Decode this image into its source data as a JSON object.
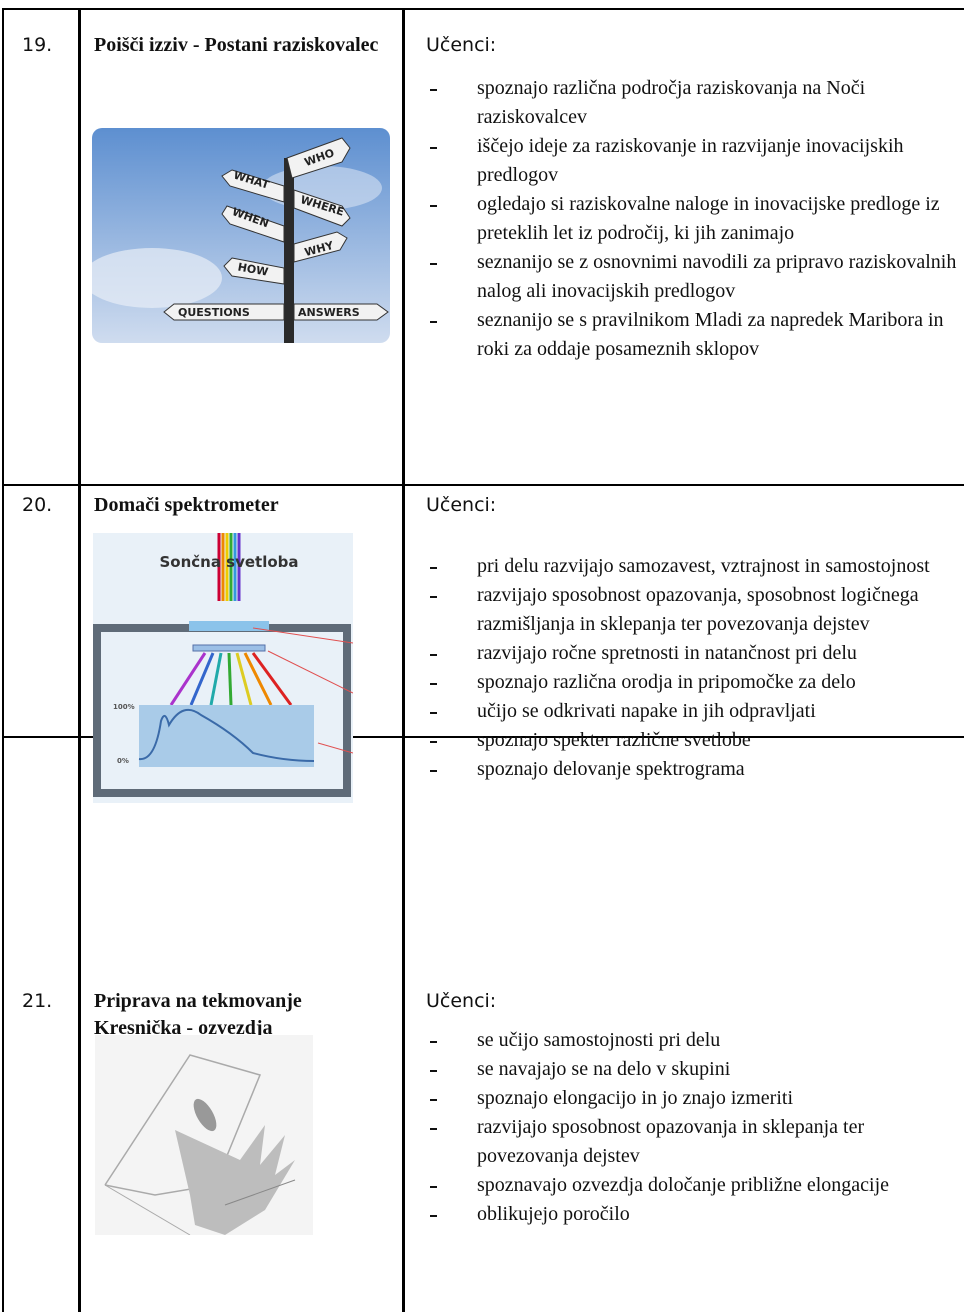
{
  "rows": [
    {
      "number": "19.",
      "title": "Poišči izziv - Postani raziskovalec",
      "image_labels": [
        "WHO",
        "WHAT",
        "WHERE",
        "WHEN",
        "WHY",
        "HOW",
        "QUESTIONS",
        "ANSWERS"
      ],
      "intro": "Učenci:",
      "items": [
        "spoznajo različna področja raziskovanja na Noči raziskovalcev",
        "iščejo ideje za raziskovanje in razvijanje inovacijskih predlogov",
        "ogledajo si raziskovalne naloge in inovacijske predloge iz preteklih let iz področij, ki jih zanimajo",
        "seznanijo se z osnovnimi navodili za pripravo raziskovalnih nalog ali inovacijskih predlogov",
        "seznanijo se s pravilnikom Mladi za napredek Maribora in roki za oddaje posameznih sklopov"
      ]
    },
    {
      "number": "20.",
      "title": "Domači spektrometer",
      "image_labels": [
        "Sončna svetloba",
        "100%",
        "0%"
      ],
      "intro": "Učenci:",
      "items": [
        "pri delu razvijajo samozavest, vztrajnost in samostojnost",
        "razvijajo sposobnost opazovanja, sposobnost logičnega razmišljanja in sklepanja ter   povezovanja dejstev",
        "razvijajo ročne spretnosti in natančnost pri delu",
        "spoznajo različna orodja in pripomočke za delo",
        "učijo se odkrivati napake in jih odpravljati",
        "spoznajo spekter različne svetlobe",
        "spoznajo delovanje spektrograma"
      ]
    },
    {
      "number": "21.",
      "title": "Priprava na tekmovanje Kresnička - ozvezdja",
      "intro": "Učenci:",
      "items": [
        "se učijo samostojnosti pri delu",
        "se navajajo se na delo v skupini",
        "spoznajo elongacijo in jo znajo izmeriti",
        "razvijajo sposobnost opazovanja in sklepanja ter povezovanja dejstev",
        "spoznavajo ozvezdja določanje približne elongacije",
        "oblikujejo poročilo"
      ]
    }
  ]
}
